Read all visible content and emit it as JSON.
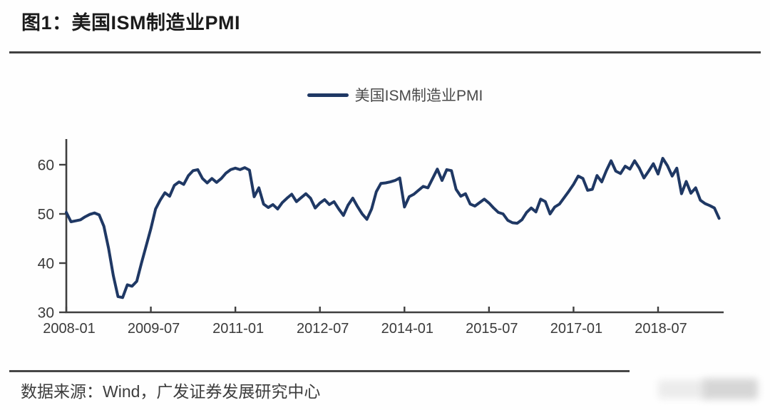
{
  "figure": {
    "title": "图1：美国ISM制造业PMI",
    "source": "数据来源：Wind，广发证券发展研究中心"
  },
  "legend": {
    "label": "美国ISM制造业PMI",
    "swatch_color": "#1f3864"
  },
  "colors": {
    "line": "#1f3864",
    "axis": "#3f3f3f",
    "tick_label": "#3a3a3a",
    "divider": "#474747",
    "background": "#fefefe"
  },
  "chart_data": {
    "type": "line",
    "title": "美国ISM制造业PMI",
    "x_start": "2008-01",
    "x_end": "2019-08",
    "x_frequency": "monthly",
    "xlabel": "",
    "ylabel": "",
    "ylim": [
      30,
      65
    ],
    "yticks": [
      30,
      40,
      50,
      60
    ],
    "xticks": {
      "labels": [
        "2008-01",
        "2009-07",
        "2011-01",
        "2012-07",
        "2014-01",
        "2015-07",
        "2017-01",
        "2018-07"
      ],
      "month_indices": [
        0,
        18,
        36,
        54,
        72,
        90,
        108,
        126
      ]
    },
    "grid": false,
    "legend_position": "top-center",
    "series": [
      {
        "name": "美国ISM制造业PMI",
        "values": [
          50.3,
          48.4,
          48.6,
          48.8,
          49.4,
          49.9,
          50.2,
          49.8,
          47.5,
          43.0,
          37.5,
          33.2,
          33.0,
          35.6,
          35.3,
          36.3,
          40.0,
          43.5,
          47.0,
          51.0,
          52.8,
          54.3,
          53.6,
          55.8,
          56.5,
          56.0,
          57.8,
          58.8,
          59.0,
          57.2,
          56.3,
          57.2,
          56.4,
          57.2,
          58.3,
          59.0,
          59.3,
          59.0,
          59.4,
          58.9,
          53.5,
          55.3,
          52.0,
          51.3,
          51.9,
          51.0,
          52.3,
          53.2,
          54.0,
          52.5,
          53.3,
          54.1,
          53.2,
          51.2,
          52.2,
          52.9,
          51.9,
          52.5,
          51.0,
          49.7,
          51.8,
          53.2,
          51.5,
          50.0,
          48.9,
          51.0,
          54.5,
          56.2,
          56.3,
          56.5,
          56.8,
          57.3,
          51.4,
          53.5,
          54.0,
          54.8,
          55.6,
          55.3,
          57.2,
          59.1,
          56.8,
          59.0,
          58.8,
          55.0,
          53.6,
          54.1,
          52.0,
          51.6,
          52.3,
          53.0,
          52.2,
          51.2,
          50.3,
          50.0,
          48.7,
          48.2,
          48.1,
          48.8,
          50.3,
          51.2,
          50.4,
          53.0,
          52.5,
          50.0,
          51.4,
          52.0,
          53.3,
          54.6,
          56.0,
          57.7,
          57.2,
          54.8,
          55.0,
          57.8,
          56.5,
          58.8,
          60.8,
          58.7,
          58.2,
          59.7,
          59.1,
          60.8,
          59.3,
          57.3,
          58.7,
          60.2,
          58.1,
          61.3,
          59.8,
          57.7,
          59.3,
          54.1,
          56.6,
          54.2,
          55.3,
          52.8,
          52.1,
          51.7,
          51.2,
          49.1
        ]
      }
    ]
  }
}
